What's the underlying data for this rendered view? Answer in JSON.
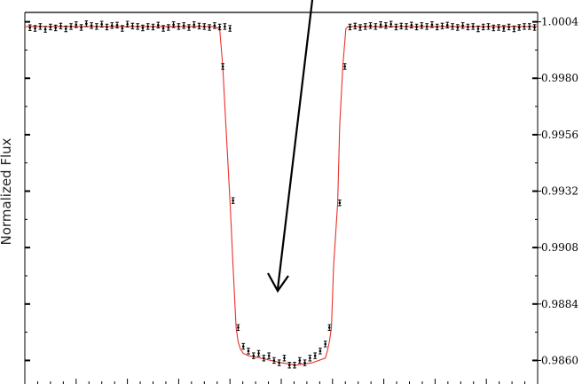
{
  "chart_data": {
    "type": "scatter",
    "title": "",
    "xlabel": "",
    "ylabel": "Normalized Flux",
    "ylim": [
      0.9853,
      1.0008
    ],
    "xlim": [
      0,
      100
    ],
    "y_ticks": [
      1.0004,
      0.998,
      0.9956,
      0.9932,
      0.9908,
      0.9884,
      0.986
    ],
    "y_tick_labels": [
      "1.0004",
      "0.9980",
      "0.9956",
      "0.9932",
      "0.9908",
      "0.9884",
      "0.9860"
    ],
    "grid": false,
    "legend": "none",
    "colors": {
      "model": "#e8302a",
      "points": "#000000",
      "arrow": "#000000"
    },
    "series": [
      {
        "kind": "points",
        "x": [
          1,
          2,
          3,
          4,
          5,
          6,
          7,
          8,
          9,
          10,
          11,
          12,
          13,
          14,
          15,
          16,
          17,
          18,
          19,
          20,
          21,
          22,
          23,
          24,
          25,
          26,
          27,
          28,
          29,
          30,
          31,
          32,
          33,
          34,
          35,
          36,
          37,
          38,
          39,
          40,
          38.6,
          40.6,
          41.6,
          42.6,
          43.6,
          44.6,
          45.6,
          46.6,
          47.6,
          48.6,
          49.6,
          50.6,
          51.6,
          52.6,
          53.6,
          54.6,
          55.6,
          56.6,
          57.6,
          58.6,
          59.4,
          61.4,
          62.4,
          63.4,
          64.4,
          65.4,
          66.4,
          67.4,
          68.4,
          69.4,
          70.4,
          71.4,
          72.4,
          73.4,
          74.4,
          75.4,
          76.4,
          77.4,
          78.4,
          79.4,
          80.4,
          81.4,
          82.4,
          83.4,
          84.4,
          85.4,
          86.4,
          87.4,
          88.4,
          89.4,
          90.4,
          91.4,
          92.4,
          93.4,
          94.4,
          95.4,
          96.4,
          97.4,
          98.4,
          99.4
        ],
        "y": [
          1.00015,
          1.00012,
          1.0002,
          1.00008,
          1.00018,
          1.00014,
          1.00022,
          1.0001,
          1.0002,
          1.00028,
          1.00016,
          1.00032,
          1.00024,
          1.0002,
          1.0003,
          1.00018,
          1.00024,
          1.00026,
          1.00012,
          1.0003,
          1.00022,
          1.0002,
          1.00014,
          1.0002,
          1.00018,
          1.00026,
          1.00012,
          1.00016,
          1.00028,
          1.0002,
          1.00024,
          1.00016,
          1.00028,
          1.00022,
          1.0002,
          1.00016,
          1.00024,
          1.00018,
          1.0002,
          1.00012,
          0.9985,
          0.9928,
          0.9874,
          0.9866,
          0.9864,
          0.9862,
          0.9863,
          0.9861,
          0.9862,
          0.986,
          0.9859,
          0.9861,
          0.9858,
          0.9858,
          0.986,
          0.9859,
          0.9861,
          0.9862,
          0.9864,
          0.9867,
          0.9874,
          0.9927,
          0.9985,
          1.00018,
          1.00022,
          1.00016,
          1.0002,
          1.00024,
          1.0002,
          1.00028,
          1.00024,
          1.0003,
          1.00018,
          1.00022,
          1.0002,
          1.00026,
          1.00018,
          1.00024,
          1.0002,
          1.00028,
          1.00018,
          1.00022,
          1.00026,
          1.0002,
          1.00016,
          1.00024,
          1.00018,
          1.0002,
          1.0001,
          1.00018,
          1.0002,
          1.00014,
          1.00016,
          1.00012,
          1.00018,
          1.0001,
          1.00016,
          1.0002,
          1.0002,
          1.00016
        ],
        "err": 0.00012
      },
      {
        "kind": "model",
        "x": [
          0,
          36,
          37,
          38,
          38.6,
          39.2,
          40,
          40.6,
          41.2,
          41.6,
          42,
          42.6,
          43.6,
          46,
          50,
          53,
          56,
          58.6,
          59,
          59.4,
          59.8,
          60.2,
          61,
          61.4,
          62,
          62.6,
          63,
          64,
          100
        ],
        "y": [
          1.0002,
          1.0002,
          1.0002,
          1.0001,
          0.9985,
          0.996,
          0.9928,
          0.99,
          0.9874,
          0.9868,
          0.9865,
          0.9863,
          0.9862,
          0.9861,
          0.9859,
          0.9858,
          0.9859,
          0.9861,
          0.9864,
          0.9868,
          0.9874,
          0.99,
          0.9927,
          0.996,
          0.9985,
          1.0001,
          1.0002,
          1.0002,
          1.0002
        ]
      }
    ]
  }
}
